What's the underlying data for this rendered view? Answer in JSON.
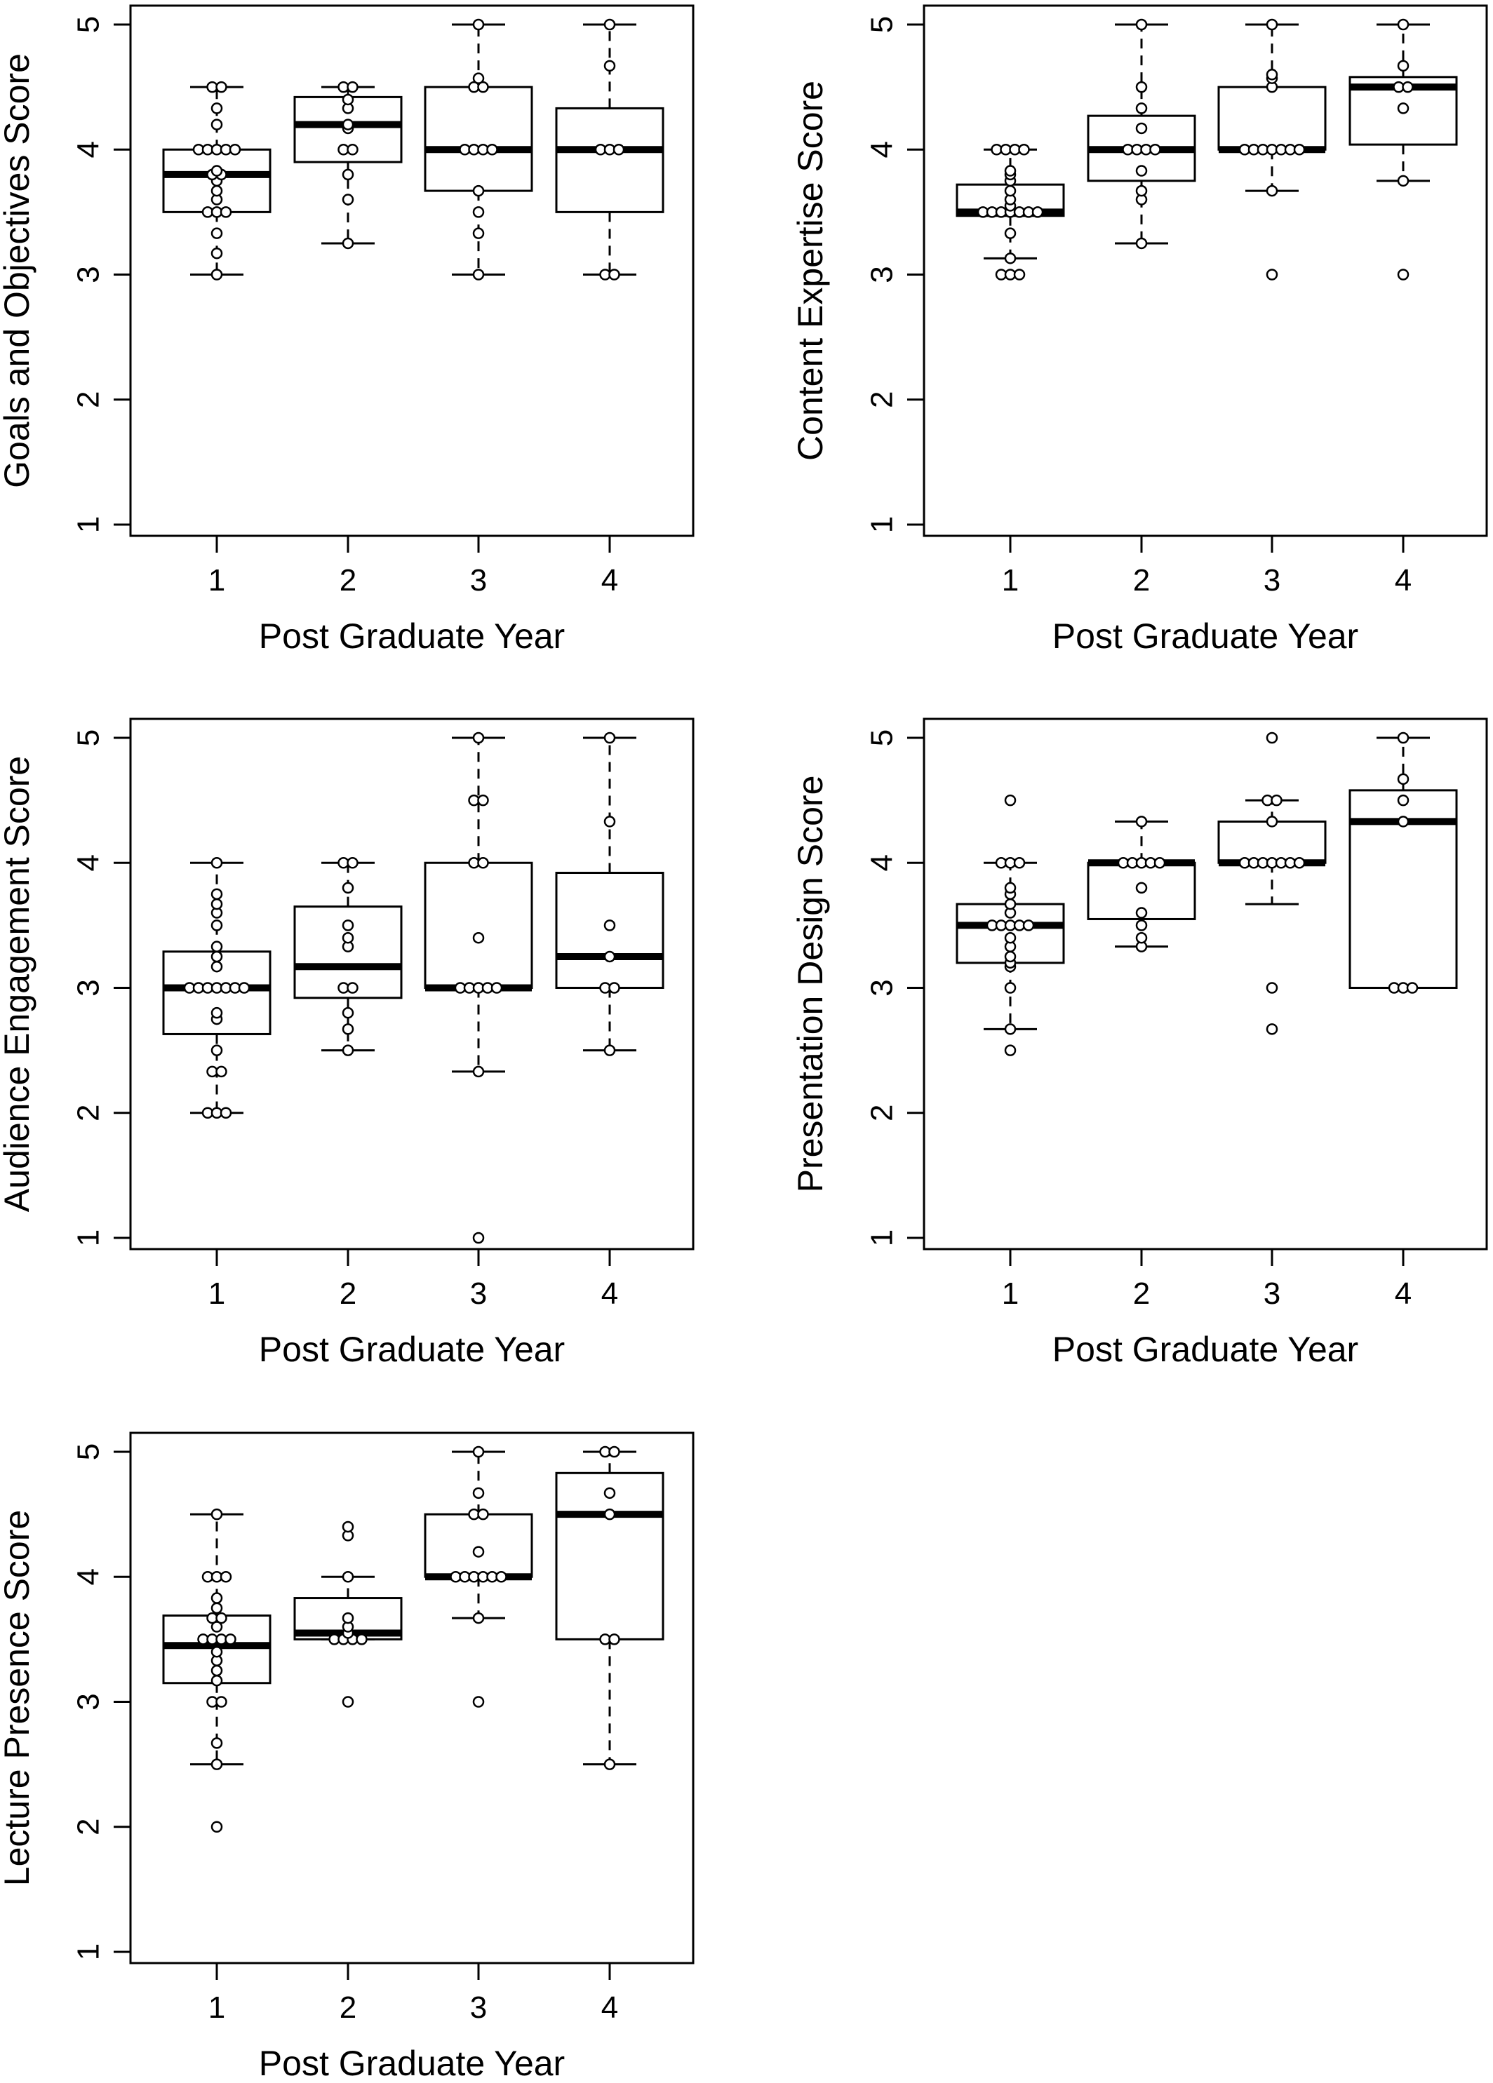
{
  "chart_data": [
    {
      "type": "boxplot",
      "ylabel": "Goals and Objectives Score",
      "xlabel": "Post Graduate Year",
      "categories": [
        "1",
        "2",
        "3",
        "4"
      ],
      "ylim": [
        1,
        5
      ],
      "yticks": [
        "1",
        "2",
        "3",
        "4",
        "5"
      ],
      "boxes": [
        {
          "q1": 3.5,
          "median": 3.8,
          "q3": 4.0,
          "whisker_low": 3.0,
          "whisker_high": 4.5
        },
        {
          "q1": 3.9,
          "median": 4.2,
          "q3": 4.42,
          "whisker_low": 3.25,
          "whisker_high": 4.5
        },
        {
          "q1": 3.67,
          "median": 4.0,
          "q3": 4.5,
          "whisker_low": 3.0,
          "whisker_high": 5.0
        },
        {
          "q1": 3.5,
          "median": 4.0,
          "q3": 4.33,
          "whisker_low": 3.0,
          "whisker_high": 5.0
        }
      ],
      "points": [
        [
          3.0,
          3.17,
          3.33,
          3.5,
          3.5,
          3.5,
          3.6,
          3.67,
          3.75,
          3.8,
          3.8,
          3.83,
          4.0,
          4.0,
          4.0,
          4.0,
          4.0,
          4.2,
          4.33,
          4.5,
          4.5
        ],
        [
          3.25,
          3.6,
          3.8,
          4.0,
          4.0,
          4.17,
          4.2,
          4.33,
          4.4,
          4.5,
          4.5
        ],
        [
          3.0,
          3.33,
          3.5,
          3.67,
          4.0,
          4.0,
          4.0,
          4.0,
          4.5,
          4.5,
          4.57,
          5.0
        ],
        [
          3.0,
          3.0,
          4.0,
          4.0,
          4.0,
          4.67,
          5.0
        ]
      ]
    },
    {
      "type": "boxplot",
      "ylabel": "Content Expertise Score",
      "xlabel": "Post Graduate Year",
      "categories": [
        "1",
        "2",
        "3",
        "4"
      ],
      "ylim": [
        1,
        5
      ],
      "yticks": [
        "1",
        "2",
        "3",
        "4",
        "5"
      ],
      "boxes": [
        {
          "q1": 3.47,
          "median": 3.5,
          "q3": 3.72,
          "whisker_low": 3.13,
          "whisker_high": 4.0
        },
        {
          "q1": 3.75,
          "median": 4.0,
          "q3": 4.27,
          "whisker_low": 3.25,
          "whisker_high": 5.0
        },
        {
          "q1": 4.0,
          "median": 4.0,
          "q3": 4.5,
          "whisker_low": 3.67,
          "whisker_high": 5.0
        },
        {
          "q1": 4.04,
          "median": 4.5,
          "q3": 4.58,
          "whisker_low": 3.75,
          "whisker_high": 5.0
        }
      ],
      "points": [
        [
          3.0,
          3.0,
          3.0,
          3.13,
          3.33,
          3.5,
          3.5,
          3.5,
          3.5,
          3.5,
          3.5,
          3.5,
          3.55,
          3.6,
          3.67,
          3.75,
          3.8,
          3.83,
          4.0,
          4.0,
          4.0,
          4.0
        ],
        [
          3.25,
          3.6,
          3.67,
          3.83,
          4.0,
          4.0,
          4.0,
          4.0,
          4.17,
          4.33,
          4.5,
          5.0
        ],
        [
          3.0,
          3.67,
          4.0,
          4.0,
          4.0,
          4.0,
          4.0,
          4.0,
          4.0,
          4.5,
          4.57,
          4.6,
          5.0
        ],
        [
          3.0,
          3.75,
          4.33,
          4.5,
          4.5,
          4.67,
          5.0
        ]
      ]
    },
    {
      "type": "boxplot",
      "ylabel": "Audience Engagement Score",
      "xlabel": "Post Graduate Year",
      "categories": [
        "1",
        "2",
        "3",
        "4"
      ],
      "ylim": [
        1,
        5
      ],
      "yticks": [
        "1",
        "2",
        "3",
        "4",
        "5"
      ],
      "boxes": [
        {
          "q1": 2.63,
          "median": 3.0,
          "q3": 3.29,
          "whisker_low": 2.0,
          "whisker_high": 4.0
        },
        {
          "q1": 2.92,
          "median": 3.17,
          "q3": 3.65,
          "whisker_low": 2.5,
          "whisker_high": 4.0
        },
        {
          "q1": 3.0,
          "median": 3.0,
          "q3": 4.0,
          "whisker_low": 2.33,
          "whisker_high": 5.0
        },
        {
          "q1": 3.0,
          "median": 3.25,
          "q3": 3.92,
          "whisker_low": 2.5,
          "whisker_high": 5.0
        }
      ],
      "points": [
        [
          2.0,
          2.0,
          2.0,
          2.33,
          2.33,
          2.5,
          2.75,
          2.8,
          3.0,
          3.0,
          3.0,
          3.0,
          3.0,
          3.0,
          3.0,
          3.17,
          3.25,
          3.33,
          3.5,
          3.6,
          3.67,
          3.75,
          4.0
        ],
        [
          2.5,
          2.67,
          2.8,
          3.0,
          3.0,
          3.33,
          3.4,
          3.5,
          3.8,
          4.0,
          4.0
        ],
        [
          1.0,
          2.33,
          3.0,
          3.0,
          3.0,
          3.0,
          3.0,
          3.4,
          4.0,
          4.0,
          4.5,
          4.5,
          5.0
        ],
        [
          2.5,
          3.0,
          3.0,
          3.25,
          3.5,
          4.33,
          5.0
        ]
      ]
    },
    {
      "type": "boxplot",
      "ylabel": "Presentation Design Score",
      "xlabel": "Post Graduate Year",
      "categories": [
        "1",
        "2",
        "3",
        "4"
      ],
      "ylim": [
        1,
        5
      ],
      "yticks": [
        "1",
        "2",
        "3",
        "4",
        "5"
      ],
      "boxes": [
        {
          "q1": 3.2,
          "median": 3.5,
          "q3": 3.67,
          "whisker_low": 2.67,
          "whisker_high": 4.0
        },
        {
          "q1": 3.55,
          "median": 4.0,
          "q3": 4.0,
          "whisker_low": 3.33,
          "whisker_high": 4.33
        },
        {
          "q1": 4.0,
          "median": 4.0,
          "q3": 4.33,
          "whisker_low": 3.67,
          "whisker_high": 4.5
        },
        {
          "q1": 3.0,
          "median": 4.33,
          "q3": 4.58,
          "whisker_low": 3.0,
          "whisker_high": 5.0
        }
      ],
      "points": [
        [
          2.5,
          2.67,
          3.0,
          3.17,
          3.2,
          3.25,
          3.33,
          3.4,
          3.5,
          3.5,
          3.5,
          3.5,
          3.5,
          3.6,
          3.67,
          3.75,
          3.8,
          4.0,
          4.0,
          4.0,
          4.5
        ],
        [
          3.33,
          3.4,
          3.5,
          3.6,
          3.8,
          4.0,
          4.0,
          4.0,
          4.0,
          4.0,
          4.33
        ],
        [
          2.67,
          3.0,
          4.0,
          4.0,
          4.0,
          4.0,
          4.0,
          4.0,
          4.0,
          4.33,
          4.5,
          4.5,
          5.0
        ],
        [
          3.0,
          3.0,
          3.0,
          4.33,
          4.5,
          4.67,
          5.0
        ]
      ]
    },
    {
      "type": "boxplot",
      "ylabel": "Lecture Presence Score",
      "xlabel": "Post Graduate Year",
      "categories": [
        "1",
        "2",
        "3",
        "4"
      ],
      "ylim": [
        1,
        5
      ],
      "yticks": [
        "1",
        "2",
        "3",
        "4",
        "5"
      ],
      "boxes": [
        {
          "q1": 3.15,
          "median": 3.45,
          "q3": 3.69,
          "whisker_low": 2.5,
          "whisker_high": 4.5
        },
        {
          "q1": 3.5,
          "median": 3.55,
          "q3": 3.83,
          "whisker_low": 3.5,
          "whisker_high": 4.0
        },
        {
          "q1": 4.0,
          "median": 4.0,
          "q3": 4.5,
          "whisker_low": 3.67,
          "whisker_high": 5.0
        },
        {
          "q1": 3.5,
          "median": 4.5,
          "q3": 4.83,
          "whisker_low": 2.5,
          "whisker_high": 5.0
        }
      ],
      "points": [
        [
          2.0,
          2.5,
          2.67,
          3.0,
          3.0,
          3.17,
          3.25,
          3.33,
          3.4,
          3.5,
          3.5,
          3.5,
          3.5,
          3.6,
          3.67,
          3.67,
          3.75,
          3.83,
          4.0,
          4.0,
          4.0,
          4.5
        ],
        [
          3.0,
          3.5,
          3.5,
          3.5,
          3.5,
          3.55,
          3.6,
          3.67,
          4.0,
          4.33,
          4.4
        ],
        [
          3.0,
          3.67,
          4.0,
          4.0,
          4.0,
          4.0,
          4.0,
          4.0,
          4.2,
          4.5,
          4.5,
          4.67,
          5.0
        ],
        [
          2.5,
          3.5,
          3.5,
          4.5,
          4.67,
          5.0,
          5.0
        ]
      ]
    }
  ]
}
